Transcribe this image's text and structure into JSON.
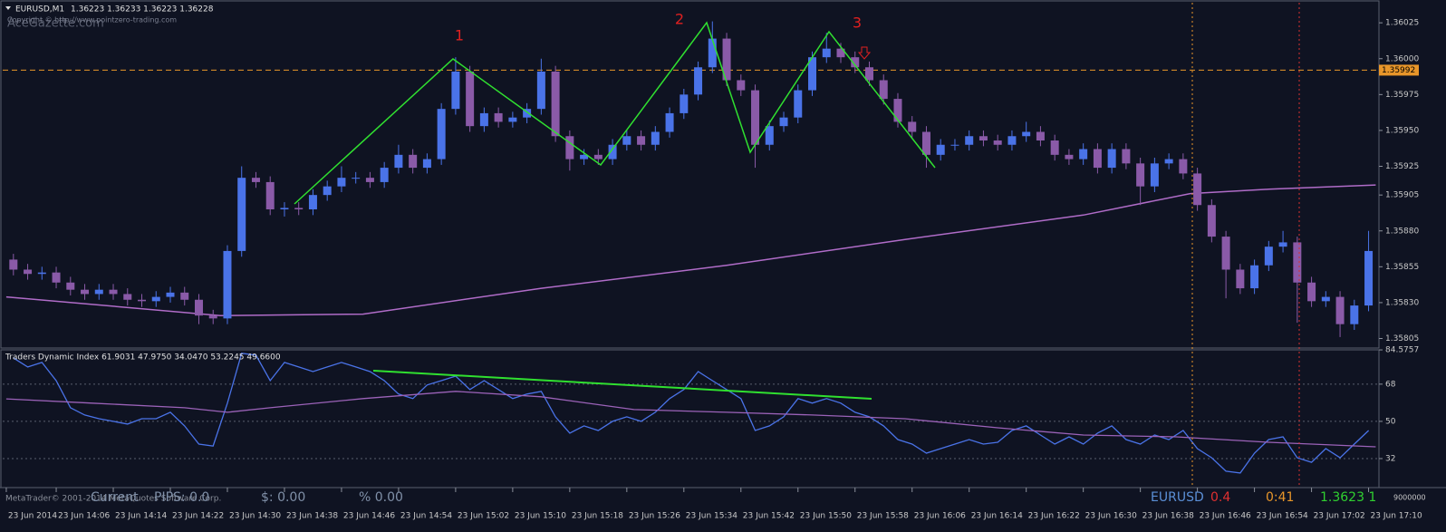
{
  "header": {
    "symbol": "EURUSD,M1",
    "quote": "1.36223 1.36233 1.36223 1.36228",
    "watermark": "AceGazette.com",
    "copyright": "Copyright © http://www.pointzero-trading.com"
  },
  "chart_data": [
    {
      "type": "candlestick",
      "x": [
        840,
        842,
        844,
        846,
        848,
        850,
        852,
        854,
        856,
        858,
        860,
        862,
        864,
        866,
        868,
        870,
        872,
        874,
        876,
        878,
        880,
        882,
        884,
        886,
        888,
        890,
        892,
        894,
        896,
        898,
        900,
        902,
        904,
        906,
        908,
        910,
        912,
        914,
        916,
        918,
        920,
        922,
        924,
        926,
        928,
        930,
        932,
        934,
        936,
        938,
        940,
        942,
        944,
        946,
        948,
        950,
        952,
        954,
        956,
        958,
        960,
        962,
        964,
        966,
        968,
        970,
        972,
        974,
        976,
        978,
        980,
        982,
        984,
        986,
        988,
        990,
        992,
        994,
        996,
        998,
        1000,
        1002,
        1004,
        1006,
        1008,
        1010,
        1012,
        1014,
        1016,
        1018,
        1020,
        1022,
        1024,
        1026,
        1028,
        1030
      ],
      "open": [
        1.3586,
        1.35853,
        1.3585,
        1.35851,
        1.35844,
        1.35839,
        1.35836,
        1.35839,
        1.35836,
        1.35832,
        1.35831,
        1.35834,
        1.35837,
        1.35832,
        1.35821,
        1.35819,
        1.35866,
        1.35917,
        1.35914,
        1.35895,
        1.35896,
        1.35895,
        1.35905,
        1.35911,
        1.35917,
        1.35917,
        1.35914,
        1.35924,
        1.35933,
        1.35924,
        1.3593,
        1.35965,
        1.35991,
        1.35953,
        1.35962,
        1.35956,
        1.35959,
        1.35965,
        1.35991,
        1.35946,
        1.3593,
        1.35933,
        1.3593,
        1.3594,
        1.35946,
        1.3594,
        1.35949,
        1.35962,
        1.35975,
        1.35994,
        1.36014,
        1.35985,
        1.35978,
        1.3594,
        1.35953,
        1.35959,
        1.35978,
        1.36001,
        1.36007,
        1.36001,
        1.35994,
        1.35985,
        1.35972,
        1.35956,
        1.35949,
        1.35933,
        1.3594,
        1.3594,
        1.35946,
        1.35943,
        1.3594,
        1.35946,
        1.35949,
        1.35943,
        1.35933,
        1.3593,
        1.35937,
        1.35924,
        1.35937,
        1.35927,
        1.35911,
        1.35927,
        1.3593,
        1.3592,
        1.35898,
        1.35876,
        1.35853,
        1.3584,
        1.35856,
        1.35869,
        1.35872,
        1.35844,
        1.35831,
        1.35834,
        1.35815,
        1.35828
      ],
      "high": [
        1.35864,
        1.35857,
        1.35855,
        1.35855,
        1.35848,
        1.35843,
        1.35843,
        1.35843,
        1.3584,
        1.35836,
        1.35838,
        1.35841,
        1.35841,
        1.35836,
        1.35825,
        1.3587,
        1.35925,
        1.35921,
        1.35918,
        1.359,
        1.359,
        1.35909,
        1.35915,
        1.35925,
        1.35921,
        1.35921,
        1.35928,
        1.3594,
        1.35937,
        1.35934,
        1.35969,
        1.36001,
        1.35995,
        1.35966,
        1.35966,
        1.35963,
        1.35969,
        1.36,
        1.35995,
        1.3595,
        1.35937,
        1.35937,
        1.35944,
        1.3595,
        1.3595,
        1.35953,
        1.35966,
        1.35979,
        1.35998,
        1.36026,
        1.36018,
        1.35989,
        1.35982,
        1.35957,
        1.35963,
        1.35982,
        1.36005,
        1.36018,
        1.36011,
        1.36005,
        1.35998,
        1.35989,
        1.35976,
        1.3596,
        1.35953,
        1.35944,
        1.35944,
        1.3595,
        1.3595,
        1.35947,
        1.3595,
        1.35956,
        1.35953,
        1.35947,
        1.35937,
        1.35941,
        1.35941,
        1.35941,
        1.35941,
        1.35931,
        1.35931,
        1.35934,
        1.35934,
        1.35924,
        1.35902,
        1.3588,
        1.35857,
        1.3586,
        1.35873,
        1.3588,
        1.35876,
        1.35848,
        1.35838,
        1.35838,
        1.35832,
        1.3588
      ],
      "low": [
        1.35849,
        1.35846,
        1.35846,
        1.3584,
        1.35835,
        1.35832,
        1.35832,
        1.35832,
        1.35828,
        1.35827,
        1.35827,
        1.3583,
        1.35828,
        1.35815,
        1.35815,
        1.35815,
        1.35862,
        1.3591,
        1.35891,
        1.3589,
        1.35891,
        1.35891,
        1.35901,
        1.35907,
        1.35913,
        1.3591,
        1.3591,
        1.3592,
        1.3592,
        1.3592,
        1.35926,
        1.35961,
        1.35949,
        1.35949,
        1.35952,
        1.35952,
        1.35955,
        1.35961,
        1.35942,
        1.35922,
        1.35926,
        1.35926,
        1.35926,
        1.35936,
        1.35936,
        1.35936,
        1.35945,
        1.35958,
        1.35971,
        1.3599,
        1.35981,
        1.35974,
        1.35924,
        1.35936,
        1.35949,
        1.35955,
        1.35974,
        1.35997,
        1.35997,
        1.3599,
        1.35981,
        1.35968,
        1.35952,
        1.35945,
        1.35924,
        1.35929,
        1.35936,
        1.35936,
        1.35939,
        1.35936,
        1.35936,
        1.35942,
        1.35939,
        1.35929,
        1.35926,
        1.35926,
        1.3592,
        1.3592,
        1.35923,
        1.35898,
        1.35907,
        1.35923,
        1.35916,
        1.35894,
        1.35872,
        1.35833,
        1.35836,
        1.35836,
        1.35852,
        1.35865,
        1.35816,
        1.35827,
        1.35827,
        1.35806,
        1.35811,
        1.35824
      ],
      "close": [
        1.35853,
        1.3585,
        1.35851,
        1.35844,
        1.35839,
        1.35836,
        1.35839,
        1.35836,
        1.35832,
        1.35831,
        1.35834,
        1.35837,
        1.35832,
        1.35821,
        1.35819,
        1.35866,
        1.35917,
        1.35914,
        1.35895,
        1.35896,
        1.35895,
        1.35905,
        1.35911,
        1.35917,
        1.35917,
        1.35914,
        1.35924,
        1.35933,
        1.35924,
        1.3593,
        1.35965,
        1.35991,
        1.35953,
        1.35962,
        1.35956,
        1.35959,
        1.35965,
        1.35991,
        1.35946,
        1.3593,
        1.35933,
        1.3593,
        1.3594,
        1.35946,
        1.3594,
        1.35949,
        1.35962,
        1.35975,
        1.35994,
        1.36014,
        1.35985,
        1.35978,
        1.3594,
        1.35953,
        1.35959,
        1.35978,
        1.36001,
        1.36007,
        1.36001,
        1.35994,
        1.35985,
        1.35972,
        1.35956,
        1.35949,
        1.35933,
        1.3594,
        1.3594,
        1.35946,
        1.35943,
        1.3594,
        1.35946,
        1.35949,
        1.35943,
        1.35933,
        1.3593,
        1.35937,
        1.35924,
        1.35937,
        1.35927,
        1.35911,
        1.35927,
        1.3593,
        1.3592,
        1.35898,
        1.35876,
        1.35853,
        1.3584,
        1.35856,
        1.35869,
        1.35872,
        1.35844,
        1.35831,
        1.35834,
        1.35815,
        1.35828,
        1.35866
      ],
      "bull_color": "#4a73e8",
      "bear_color": "#8a5aa8",
      "series": [
        {
          "color": "#b06cc8",
          "x": [
            839,
            869,
            889,
            914,
            940,
            965,
            990,
            1005,
            1016,
            1031
          ],
          "values": [
            1.35834,
            1.35821,
            1.35822,
            1.3584,
            1.35856,
            1.35874,
            1.35891,
            1.35906,
            1.35909,
            1.35912
          ]
        }
      ],
      "level": {
        "value": 1.35992,
        "color": "#e8962a"
      },
      "annotations": [
        "1",
        "2",
        "3"
      ],
      "xlim": [
        838.5,
        1031.2
      ],
      "ylim": [
        1.35799,
        1.36039
      ],
      "yticks": [
        1.36025,
        {
          "value": 1.36,
          "label": "1.36000"
        },
        1.35975,
        {
          "value": 1.3595,
          "label": "1.35950"
        },
        1.35925,
        1.35905,
        {
          "value": 1.3588,
          "label": "1.35880"
        },
        1.35855,
        {
          "value": 1.3583,
          "label": "1.35830"
        },
        1.35805
      ],
      "xticks": [
        {
          "value": 839,
          "label": "23 Jun 2014"
        },
        {
          "value": 846,
          "label": "23 Jun 14:06"
        },
        {
          "value": 854,
          "label": "23 Jun 14:14"
        },
        {
          "value": 862,
          "label": "23 Jun 14:22"
        },
        {
          "value": 870,
          "label": "23 Jun 14:30"
        },
        {
          "value": 878,
          "label": "23 Jun 14:38"
        },
        {
          "value": 886,
          "label": "23 Jun 14:46"
        },
        {
          "value": 894,
          "label": "23 Jun 14:54"
        },
        {
          "value": 902,
          "label": "23 Jun 15:02"
        },
        {
          "value": 910,
          "label": "23 Jun 15:10"
        },
        {
          "value": 918,
          "label": "23 Jun 15:18"
        },
        {
          "value": 926,
          "label": "23 Jun 15:26"
        },
        {
          "value": 934,
          "label": "23 Jun 15:34"
        },
        {
          "value": 942,
          "label": "23 Jun 15:42"
        },
        {
          "value": 950,
          "label": "23 Jun 15:50"
        },
        {
          "value": 958,
          "label": "23 Jun 15:58"
        },
        {
          "value": 966,
          "label": "23 Jun 16:06"
        },
        {
          "value": 974,
          "label": "23 Jun 16:14"
        },
        {
          "value": 982,
          "label": "23 Jun 16:22"
        },
        {
          "value": 990,
          "label": "23 Jun 16:30"
        },
        {
          "value": 998,
          "label": "23 Jun 16:38"
        },
        {
          "value": 1006,
          "label": "23 Jun 16:46"
        },
        {
          "value": 1014,
          "label": "23 Jun 16:54"
        },
        {
          "value": 1022,
          "label": "23 Jun 17:02"
        },
        {
          "value": 1030,
          "label": "23 Jun 17:10"
        }
      ]
    },
    {
      "type": "line",
      "title": "Traders Dynamic Index 61.9031 47.9750 34.0470 53.2245 49.6600",
      "series": [
        {
          "color": "#4a73e8",
          "x": [
            840,
            842,
            844,
            846,
            848,
            850,
            852,
            854,
            856,
            858,
            860,
            862,
            864,
            866,
            868,
            870,
            872,
            874,
            876,
            878,
            880,
            882,
            884,
            886,
            888,
            890,
            892,
            894,
            896,
            898,
            900,
            902,
            904,
            906,
            908,
            910,
            912,
            914,
            916,
            918,
            920,
            922,
            924,
            926,
            928,
            930,
            932,
            934,
            936,
            938,
            940,
            942,
            944,
            946,
            948,
            950,
            952,
            954,
            956,
            958,
            960,
            962,
            964,
            966,
            968,
            970,
            972,
            974,
            976,
            978,
            980,
            982,
            984,
            986,
            988,
            990,
            992,
            994,
            996,
            998,
            1000,
            1002,
            1004,
            1006,
            1008,
            1010,
            1012,
            1014,
            1016,
            1018,
            1020,
            1022,
            1024,
            1026,
            1028,
            1030
          ],
          "values": [
            80.7,
            76.3,
            78.5,
            69.7,
            56.6,
            53.1,
            51.3,
            50.0,
            48.7,
            51.3,
            51.3,
            54.4,
            47.8,
            39.0,
            38.1,
            58.8,
            82.9,
            82.0,
            69.7,
            78.5,
            76.3,
            74.1,
            76.3,
            78.5,
            76.3,
            74.1,
            69.7,
            63.2,
            61.0,
            67.6,
            69.7,
            71.9,
            65.4,
            69.7,
            65.4,
            61.0,
            63.2,
            64.5,
            52.2,
            44.3,
            47.8,
            45.6,
            50.0,
            52.2,
            50.0,
            54.4,
            61.0,
            65.4,
            74.1,
            69.7,
            65.4,
            61.0,
            45.6,
            47.8,
            52.2,
            61.0,
            58.8,
            61.0,
            58.8,
            54.4,
            52.2,
            47.8,
            41.2,
            39.0,
            34.6,
            36.8,
            39.0,
            41.2,
            39.0,
            39.9,
            45.6,
            47.8,
            43.4,
            39.0,
            42.5,
            39.0,
            44.3,
            47.8,
            41.2,
            39.0,
            43.4,
            41.2,
            45.6,
            36.8,
            32.4,
            25.9,
            25.0,
            34.6,
            41.2,
            42.5,
            32.4,
            30.2,
            36.8,
            32.4,
            39.0,
            45.6
          ]
        },
        {
          "color": "#9b62b8",
          "x": [
            839,
            851,
            864,
            870,
            876,
            889,
            902,
            914,
            927,
            940,
            952,
            965,
            978,
            990,
            1003,
            1016,
            1031
          ],
          "values": [
            60.9,
            58.8,
            56.6,
            54.4,
            56.6,
            61.0,
            64.5,
            61.9,
            55.7,
            54.4,
            53.1,
            51.3,
            46.9,
            43.4,
            42.5,
            39.9,
            37.7
          ]
        }
      ],
      "xlim": [
        838.5,
        1031.2
      ],
      "ylim": [
        18.4,
        84.6
      ],
      "yticks": [
        84.5757,
        68,
        50,
        32
      ],
      "grid": true,
      "scale_note": "9000000"
    }
  ],
  "footer": {
    "copyright": "MetaTrader© 2001-2014 MetaQuotes Software Corp.",
    "mode": "Current",
    "pips": "PIPS: 0.0",
    "dollars": "$: 0.00",
    "percent": "% 0.00",
    "symbol": "EURUSD",
    "spread": "0.4",
    "timer": "0:41",
    "price": "1.3623 1"
  }
}
